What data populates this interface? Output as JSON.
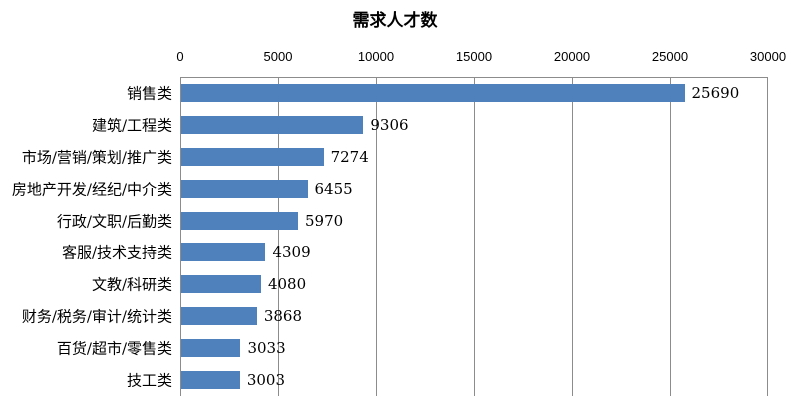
{
  "title": "需求人才数",
  "colors": {
    "bar": "#4F81BD",
    "grid": "#8c8c8c",
    "text": "#000000",
    "background": "#ffffff"
  },
  "chart_data": {
    "type": "bar",
    "orientation": "horizontal",
    "title": "需求人才数",
    "xlabel": "",
    "ylabel": "",
    "xlim": [
      0,
      30000
    ],
    "x_ticks": [
      0,
      5000,
      10000,
      15000,
      20000,
      25000,
      30000
    ],
    "grid": true,
    "legend": false,
    "data_labels": true,
    "categories": [
      "销售类",
      "建筑/工程类",
      "市场/营销/策划/推广类",
      "房地产开发/经纪/中介类",
      "行政/文职/后勤类",
      "客服/技术支持类",
      "文教/科研类",
      "财务/税务/审计/统计类",
      "百货/超市/零售类",
      "技工类"
    ],
    "values": [
      25690,
      9306,
      7274,
      6455,
      5970,
      4309,
      4080,
      3868,
      3033,
      3003
    ]
  }
}
